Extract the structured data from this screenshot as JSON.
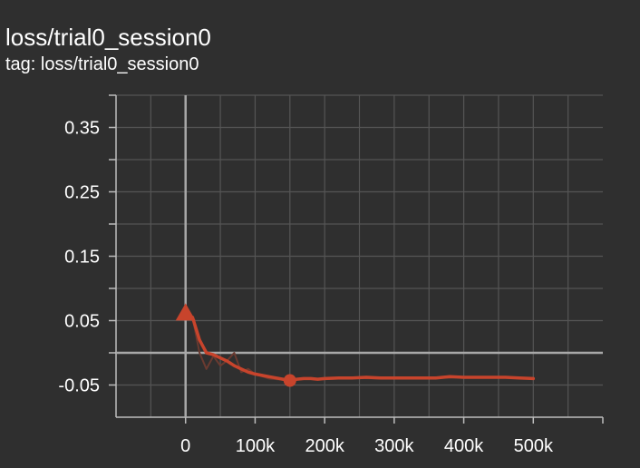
{
  "header": {
    "title": "loss/trial0_session0",
    "tag": "tag: loss/trial0_session0"
  },
  "colors": {
    "background": "#2f2f2f",
    "grid": "#555555",
    "axis": "#bdbdbd",
    "zero_line": "#a8a8a8",
    "series": "#c8442c",
    "series_raw": "#6a3a30",
    "text": "#ffffff"
  },
  "chart_data": {
    "type": "line",
    "title": "loss/trial0_session0",
    "xlabel": "",
    "ylabel": "",
    "xlim": [
      -100000,
      600000
    ],
    "ylim": [
      -0.1,
      0.4
    ],
    "x_ticks": [
      0,
      100000,
      200000,
      300000,
      400000,
      500000
    ],
    "x_tick_labels": [
      "0",
      "100k",
      "200k",
      "300k",
      "400k",
      "500k"
    ],
    "y_ticks": [
      -0.05,
      0.05,
      0.15,
      0.25,
      0.35
    ],
    "y_tick_labels": [
      "-0.05",
      "0.05",
      "0.15",
      "0.25",
      "0.35"
    ],
    "grid": true,
    "legend": "none",
    "series": [
      {
        "style": "smoothed",
        "x": [
          0,
          10000,
          20000,
          30000,
          40000,
          50000,
          60000,
          70000,
          80000,
          90000,
          100000,
          110000,
          120000,
          130000,
          140000,
          150000,
          160000,
          170000,
          180000,
          190000,
          200000,
          220000,
          240000,
          260000,
          280000,
          300000,
          320000,
          340000,
          360000,
          380000,
          400000,
          420000,
          440000,
          460000,
          480000,
          500000
        ],
        "y": [
          0.06,
          0.055,
          0.02,
          0.0,
          -0.003,
          -0.008,
          -0.013,
          -0.02,
          -0.025,
          -0.03,
          -0.033,
          -0.035,
          -0.037,
          -0.039,
          -0.041,
          -0.043,
          -0.041,
          -0.04,
          -0.04,
          -0.041,
          -0.04,
          -0.039,
          -0.039,
          -0.038,
          -0.039,
          -0.039,
          -0.039,
          -0.039,
          -0.039,
          -0.037,
          -0.038,
          -0.038,
          -0.038,
          -0.038,
          -0.039,
          -0.04
        ]
      },
      {
        "style": "raw",
        "x": [
          0,
          10000,
          20000,
          30000,
          40000,
          50000,
          60000,
          70000,
          80000,
          90000,
          100000,
          120000,
          140000,
          160000,
          180000,
          200000,
          240000,
          280000,
          320000,
          360000,
          400000,
          440000,
          480000,
          500000
        ],
        "y": [
          0.06,
          0.055,
          0.0,
          -0.025,
          -0.005,
          -0.02,
          -0.012,
          0.0,
          -0.03,
          -0.025,
          -0.033,
          -0.04,
          -0.042,
          -0.041,
          -0.04,
          -0.041,
          -0.039,
          -0.04,
          -0.039,
          -0.039,
          -0.038,
          -0.038,
          -0.039,
          -0.04
        ]
      }
    ],
    "markers": [
      {
        "shape": "triangle",
        "x": 0,
        "y": 0.06
      },
      {
        "shape": "circle",
        "x": 150000,
        "y": -0.043
      }
    ]
  }
}
